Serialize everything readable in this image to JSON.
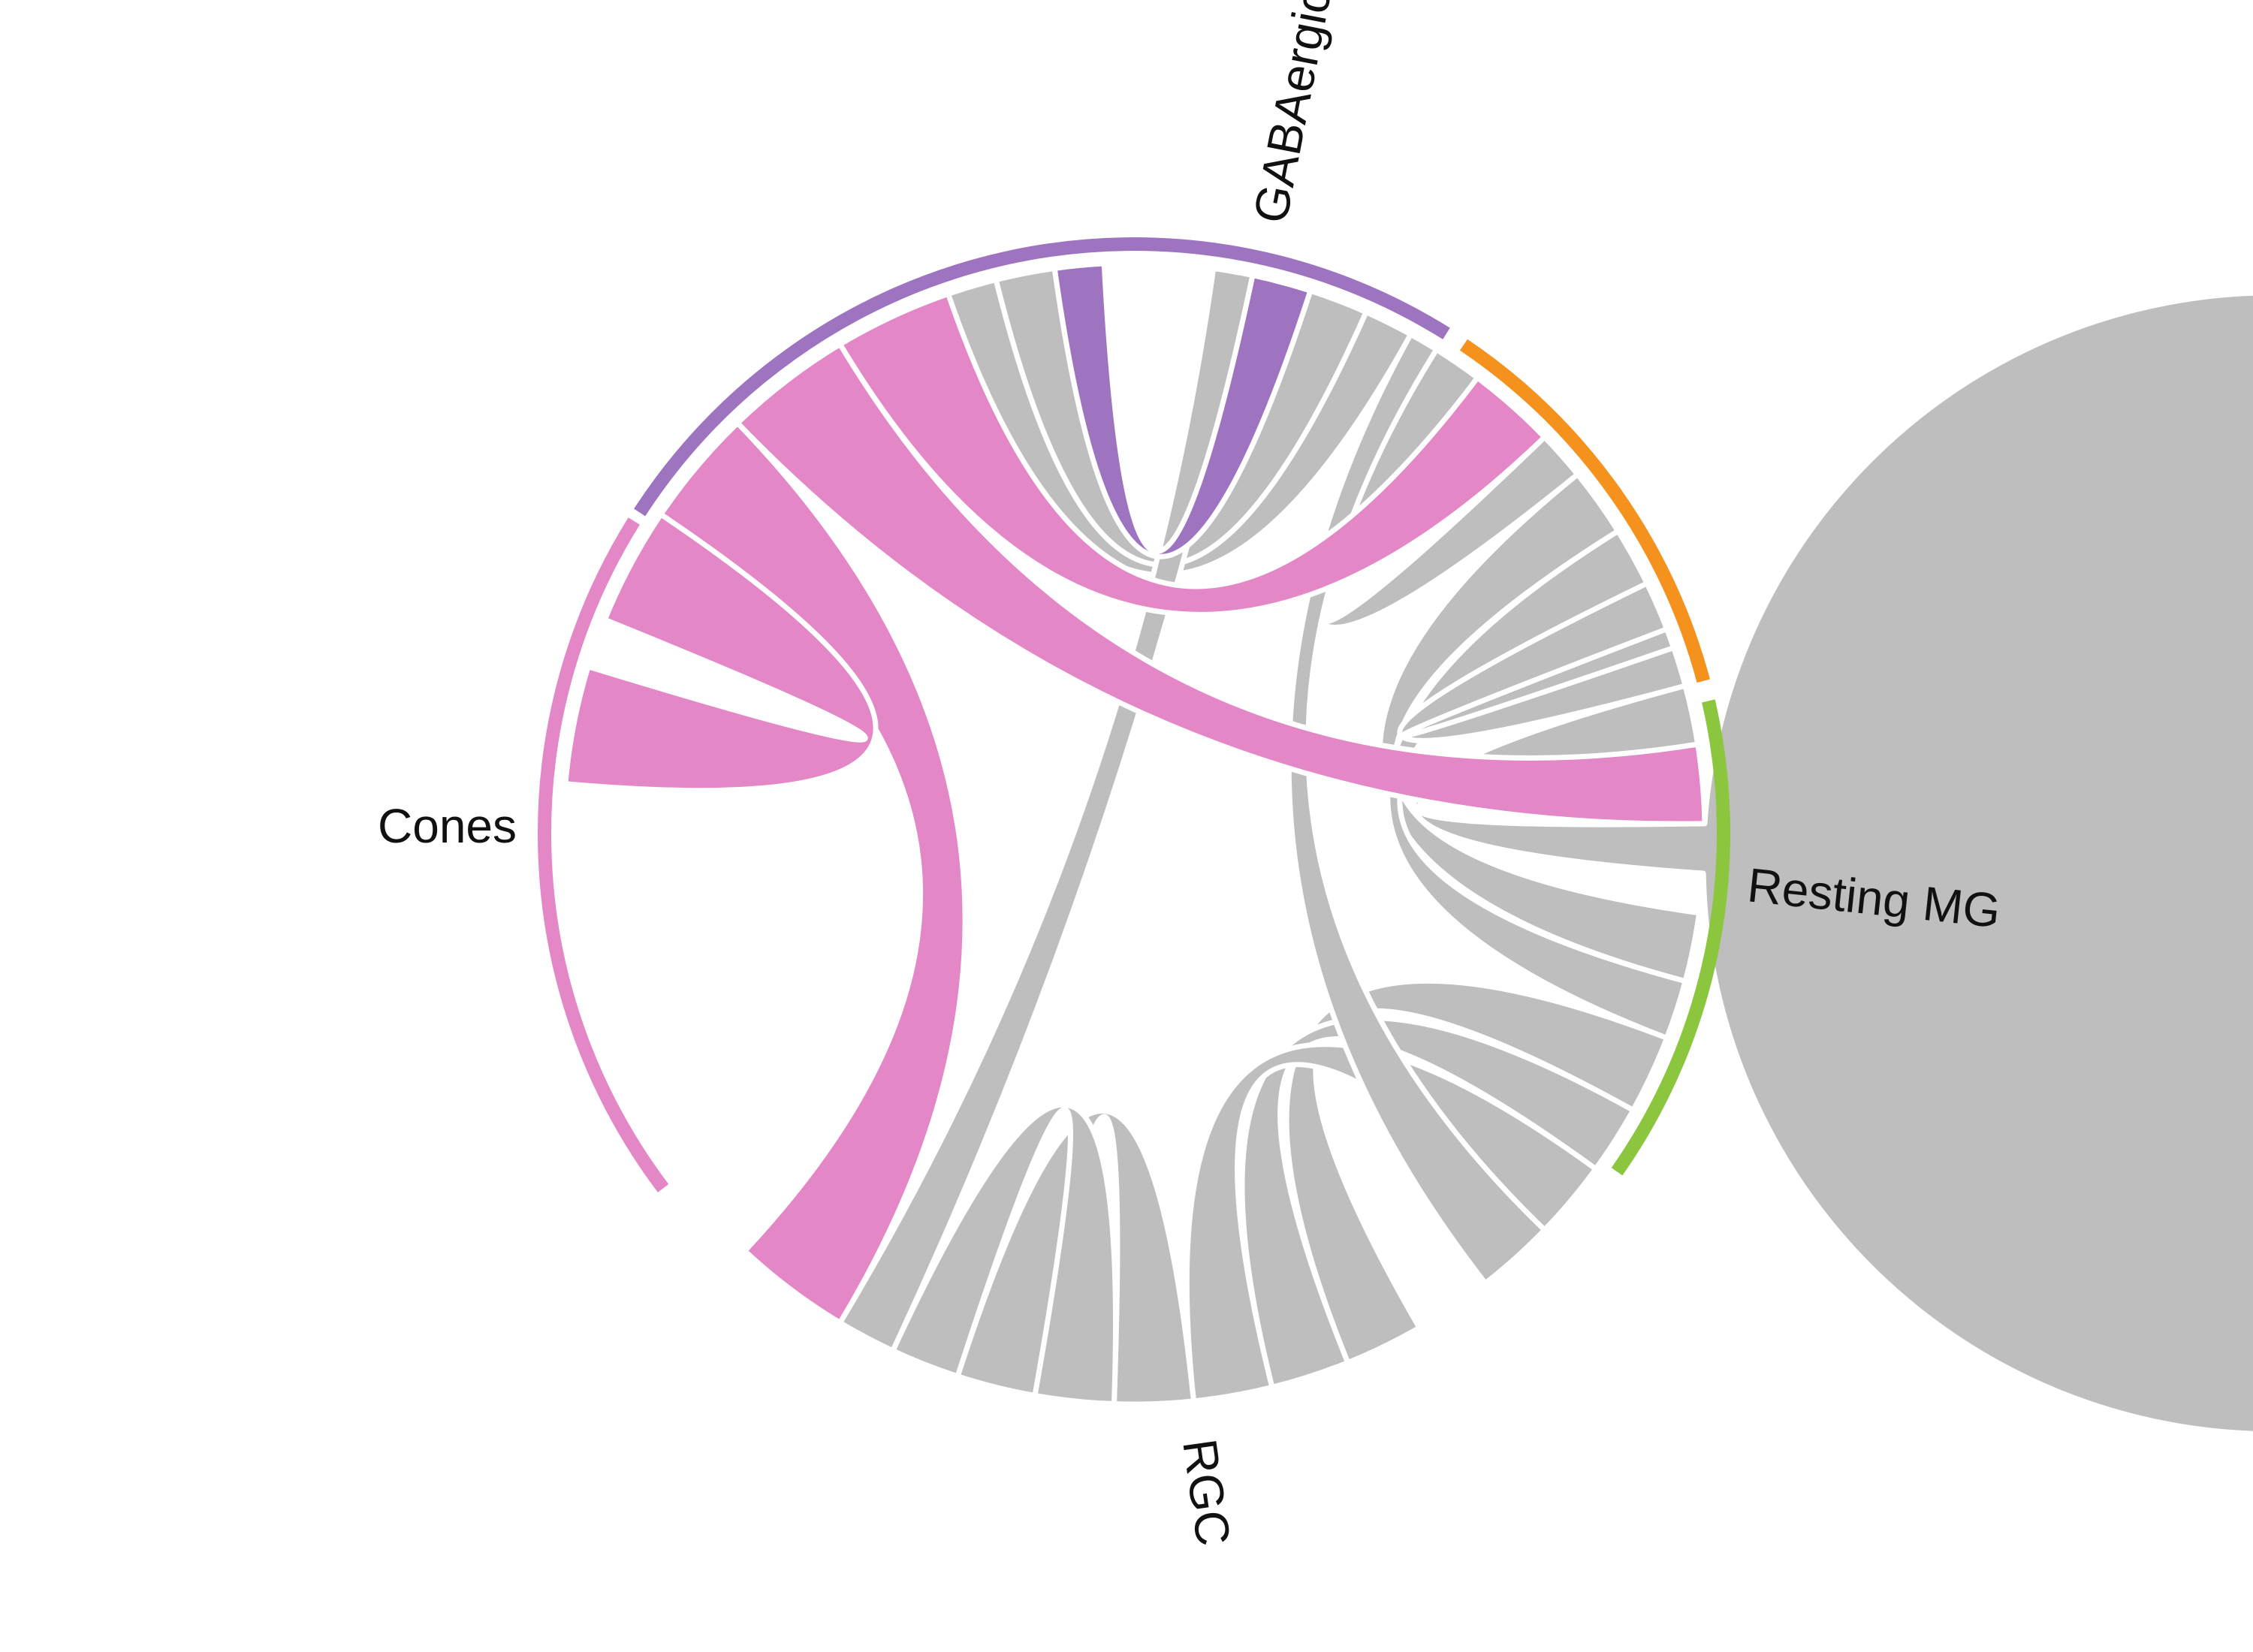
{
  "chart_data": {
    "type": "chord",
    "sectors": [
      {
        "id": "gaba",
        "label": "GABAergic",
        "color": "#9e74c0",
        "start": 24,
        "end": 302
      },
      {
        "id": "cones",
        "label": "Cones",
        "color": "#e487c6",
        "start": 213,
        "end": 282
      },
      {
        "id": "resting",
        "label": "Resting MG",
        "color": "#f5921e",
        "start": 302,
        "end": 344
      },
      {
        "id": "rgc",
        "label": "RGC",
        "color": "#8cc63f",
        "start": 344,
        "end": 386
      }
    ],
    "highlight_colors": {
      "cones": "#e487c6",
      "gaba": "#9e74c0",
      "other": "#bebebe"
    },
    "links": [
      {
        "from": "gaba",
        "to": "cones",
        "a": [
          282,
          288
        ],
        "b": [
          262,
          267
        ],
        "color": "gaba"
      },
      {
        "from": "gaba",
        "to": "cones",
        "a": [
          288,
          294
        ],
        "b": [
          256,
          262
        ],
        "color": "other"
      },
      {
        "from": "gaba",
        "to": "cones",
        "a": [
          294,
          299
        ],
        "b": [
          250,
          256
        ],
        "color": "other"
      },
      {
        "from": "cones",
        "to": "gaba",
        "a": [
          239,
          251
        ],
        "b": [
          307,
          316
        ],
        "color": "cones"
      },
      {
        "from": "cones",
        "to": "resting",
        "a": [
          226,
          239
        ],
        "b": [
          351,
          359
        ],
        "color": "cones"
      },
      {
        "from": "cones",
        "to": "rgc",
        "a": [
          214,
          226
        ],
        "b": [
          121,
          133
        ],
        "color": "cones"
      },
      {
        "from": "cones",
        "to": "cones",
        "a": [
          202,
          214
        ],
        "b": [
          185,
          197
        ],
        "color": "cones"
      },
      {
        "from": "gaba",
        "to": "gaba",
        "a": [
          302,
          307
        ],
        "b": [
          316,
          321
        ],
        "color": "other"
      },
      {
        "from": "gaba",
        "to": "resting",
        "a": [
          321,
          328
        ],
        "b": [
          8,
          15
        ],
        "color": "other"
      },
      {
        "from": "gaba",
        "to": "resting",
        "a": [
          328,
          334
        ],
        "b": [
          15,
          21
        ],
        "color": "other"
      },
      {
        "from": "gaba",
        "to": "resting",
        "a": [
          334,
          341
        ],
        "b": [
          339,
          345
        ],
        "color": "other"
      },
      {
        "from": "resting",
        "to": "rgc",
        "a": [
          21,
          29
        ],
        "b": [
          60,
          68
        ],
        "color": "other"
      },
      {
        "from": "resting",
        "to": "rgc",
        "a": [
          29,
          36
        ],
        "b": [
          68,
          76
        ],
        "color": "other"
      },
      {
        "from": "resting",
        "to": "rgc",
        "a": [
          36,
          44
        ],
        "b": [
          76,
          84
        ],
        "color": "other"
      },
      {
        "from": "resting",
        "to": "resting",
        "a": [
          345,
          351
        ],
        "b": [
          359,
          364
        ],
        "color": "other"
      },
      {
        "from": "rgc",
        "to": "rgc",
        "a": [
          84,
          92
        ],
        "b": [
          100,
          108
        ],
        "color": "other"
      },
      {
        "from": "rgc",
        "to": "rgc",
        "a": [
          92,
          100
        ],
        "b": [
          108,
          115
        ],
        "color": "other"
      },
      {
        "from": "rgc",
        "to": "gaba",
        "a": [
          115,
          121
        ],
        "b": [
          278,
          282
        ],
        "color": "other"
      },
      {
        "from": "gaba",
        "to": "rgc",
        "a": [
          299,
          302
        ],
        "b": [
          44,
          52
        ],
        "color": "other"
      }
    ]
  }
}
